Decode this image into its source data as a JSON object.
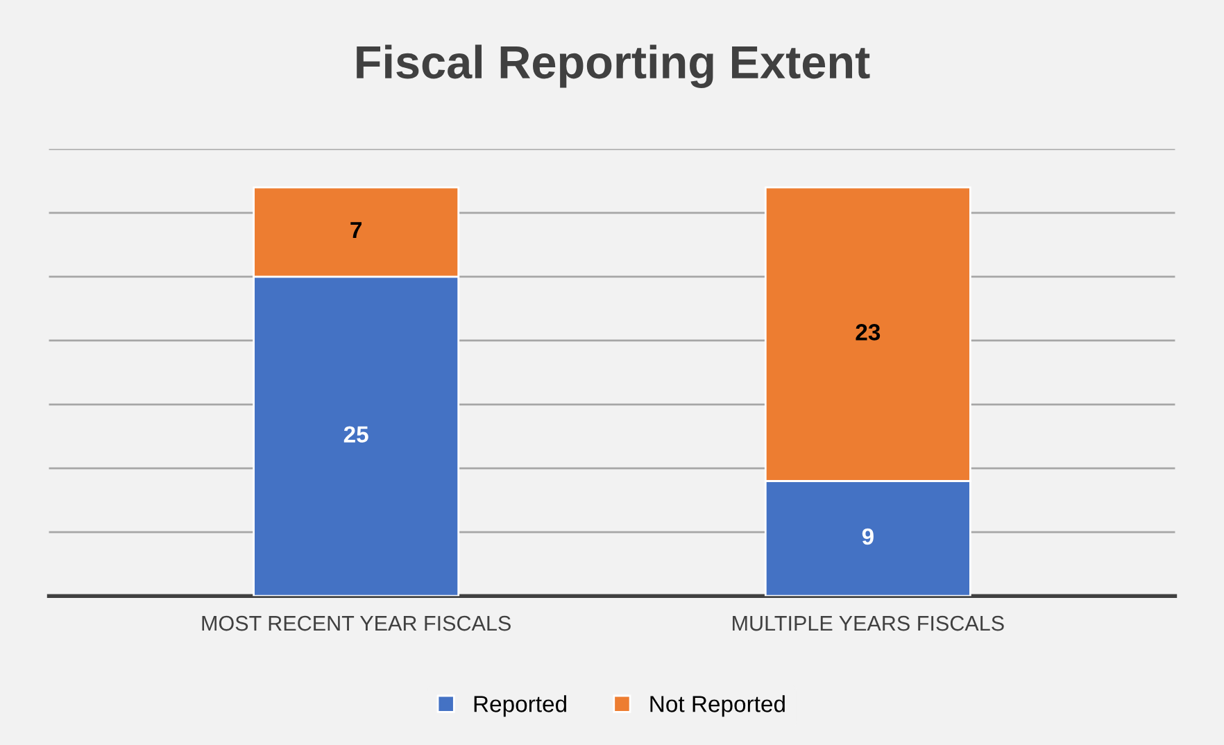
{
  "chart_data": {
    "type": "bar",
    "title": "Fiscal Reporting Extent",
    "categories": [
      "MOST RECENT YEAR FISCALS",
      "MULTIPLE YEARS FISCALS"
    ],
    "stacked": true,
    "series": [
      {
        "name": "Reported",
        "color": "#4472c4",
        "values": [
          25,
          9
        ]
      },
      {
        "name": "Not Reported",
        "color": "#ed7d31",
        "values": [
          7,
          23
        ]
      }
    ],
    "ylim": [
      0,
      35
    ],
    "yticks": [
      {
        "value": 0,
        "label": null
      },
      {
        "value": 5,
        "label": null
      },
      {
        "value": 10,
        "label": null
      },
      {
        "value": 15,
        "label": null
      },
      {
        "value": 20,
        "label": null
      },
      {
        "value": 25,
        "label": null
      },
      {
        "value": 30,
        "label": null
      },
      {
        "value": 35,
        "label": null
      }
    ],
    "tick_labels": "x",
    "grid": "y",
    "legend": "bottom",
    "data_labels": true
  }
}
